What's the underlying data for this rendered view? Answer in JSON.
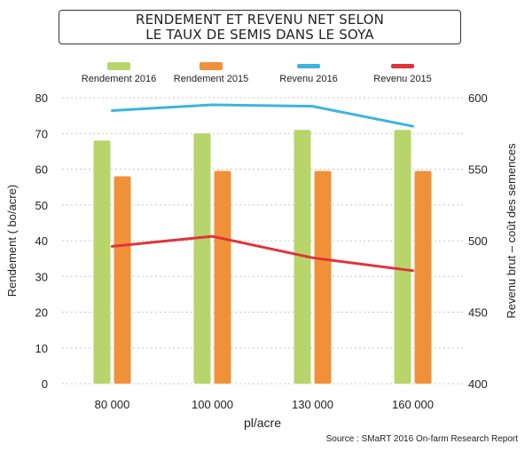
{
  "chart_data": {
    "type": "bar",
    "title_lines": [
      "RENDEMENT ET REVENU NET SELON",
      "LE TAUX DE SEMIS DANS LE SOYA"
    ],
    "xlabel": "pl/acre",
    "ylabel_left": "Rendement ( bo/acre)",
    "ylabel_right": "Revenu brut – coût des semences",
    "categories": [
      "80 000",
      "100 000",
      "130 000",
      "160 000"
    ],
    "y_left": {
      "min": 0,
      "max": 80,
      "ticks": [
        "0",
        "10",
        "20",
        "30",
        "40",
        "50",
        "60",
        "70",
        "80"
      ]
    },
    "y_right": {
      "min": 400,
      "max": 600,
      "ticks": [
        "400",
        "450",
        "500",
        "550",
        "600"
      ]
    },
    "bar_series": [
      {
        "name": "Rendement 2016",
        "color": "#b7d56a",
        "values": [
          68,
          70,
          71,
          71
        ]
      },
      {
        "name": "Rendement 2015",
        "color": "#f0913a",
        "values": [
          58,
          59.5,
          59.5,
          59.5
        ]
      }
    ],
    "line_series": [
      {
        "name": "Revenu 2016",
        "color": "#3eb4df",
        "axis": "right",
        "values": [
          591,
          595,
          594,
          580
        ]
      },
      {
        "name": "Revenu 2015",
        "color": "#e0333a",
        "axis": "right",
        "values": [
          496,
          503,
          488,
          479
        ]
      }
    ],
    "legend_position": "top",
    "grid": true
  },
  "source": "Source : SMaRT 2016 On-farm Research Report"
}
